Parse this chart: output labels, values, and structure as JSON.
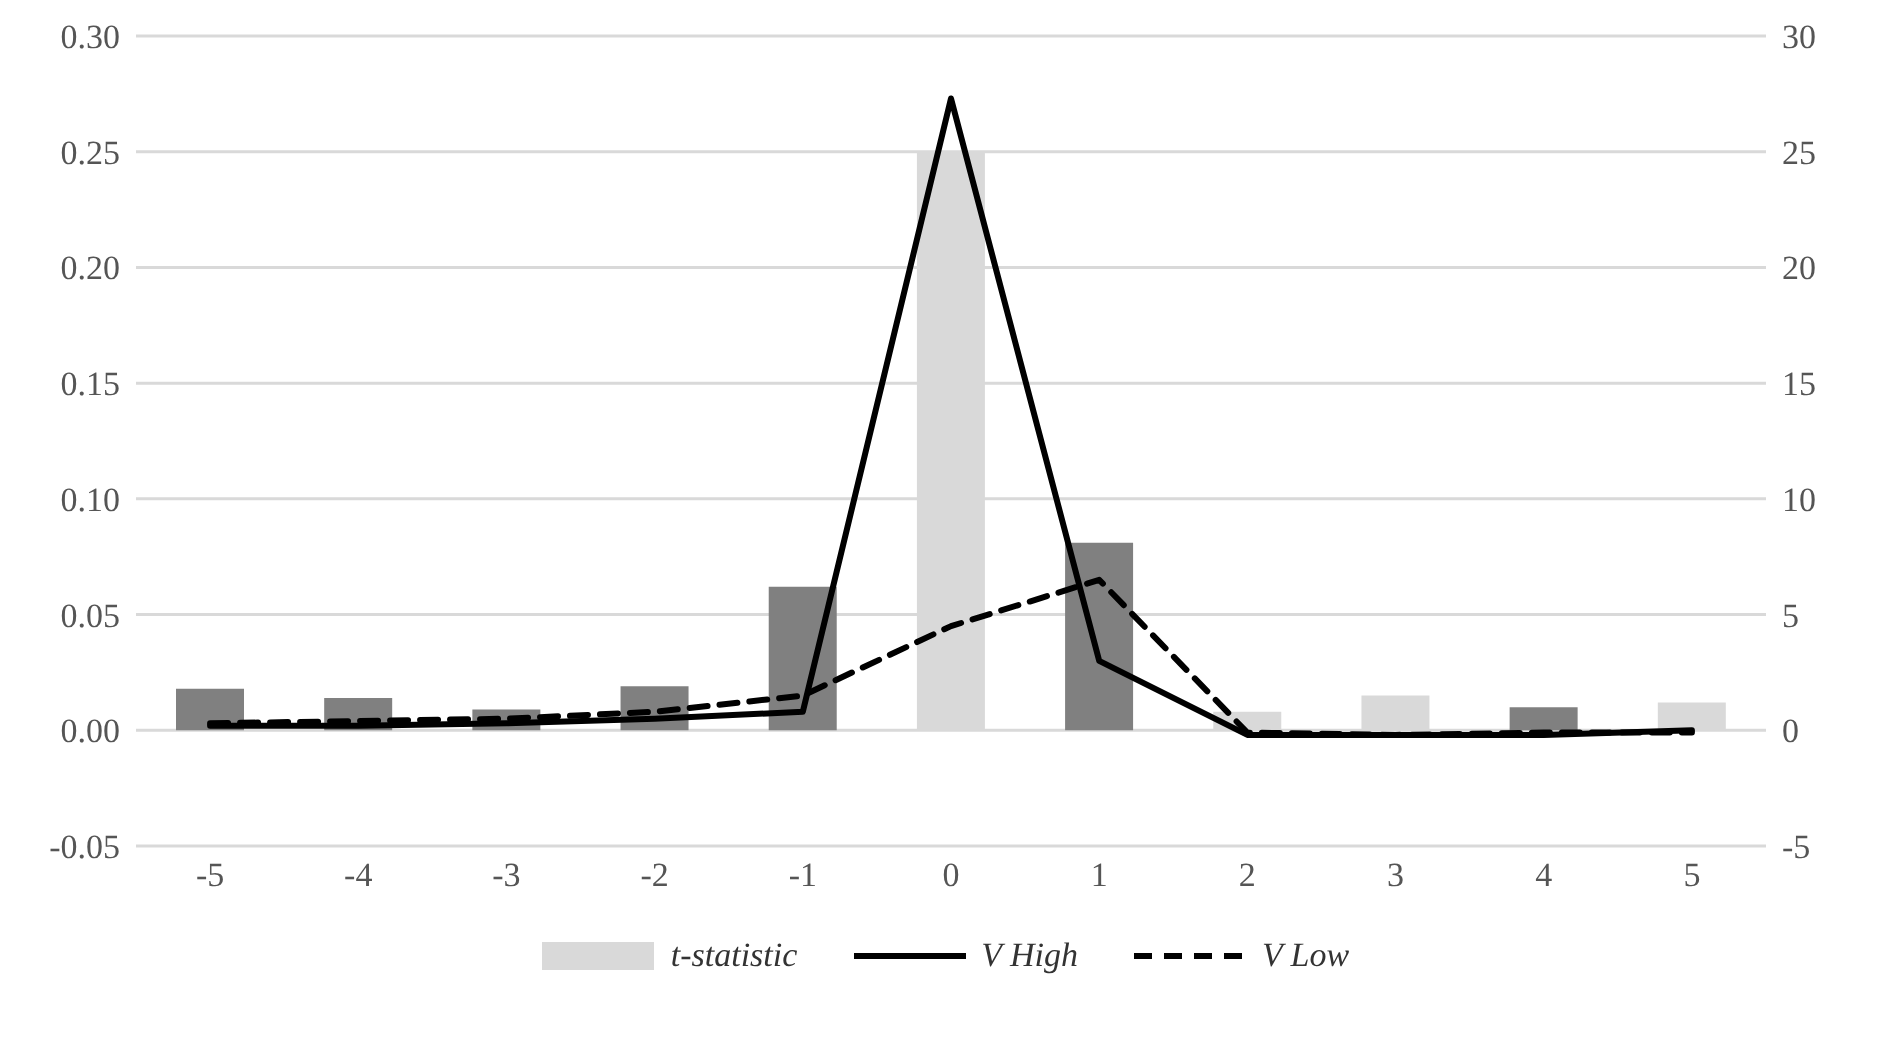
{
  "chart_data": {
    "type": "bar",
    "categories": [
      "-5",
      "-4",
      "-3",
      "-2",
      "-1",
      "0",
      "1",
      "2",
      "3",
      "4",
      "5"
    ],
    "series": [
      {
        "name": "t-statistic",
        "axis": "y2",
        "color": "#d9d9d9",
        "colors": [
          "#808080",
          "#808080",
          "#808080",
          "#808080",
          "#808080",
          "#d9d9d9",
          "#808080",
          "#d9d9d9",
          "#d9d9d9",
          "#808080",
          "#d9d9d9"
        ],
        "values": [
          1.8,
          1.4,
          0.9,
          1.9,
          6.2,
          25.0,
          8.1,
          0.8,
          1.5,
          1.0,
          1.2
        ]
      },
      {
        "name": "V High",
        "type": "line",
        "color": "#000000",
        "line_style": "solid",
        "values": [
          0.002,
          0.002,
          0.003,
          0.005,
          0.008,
          0.273,
          0.03,
          -0.002,
          -0.002,
          -0.002,
          0.0
        ]
      },
      {
        "name": "V Low",
        "type": "line",
        "color": "#000000",
        "line_style": "dashed",
        "values": [
          0.003,
          0.004,
          0.005,
          0.008,
          0.015,
          0.045,
          0.065,
          -0.001,
          -0.002,
          -0.001,
          -0.001
        ]
      }
    ],
    "ylim": [
      -0.05,
      0.3
    ],
    "yticks": [
      {
        "value": -0.05,
        "label": "-0.05"
      },
      {
        "value": 0,
        "label": "0.00"
      },
      {
        "value": 0.05,
        "label": "0.05"
      },
      {
        "value": 0.1,
        "label": "0.10"
      },
      {
        "value": 0.15,
        "label": "0.15"
      },
      {
        "value": 0.2,
        "label": "0.20"
      },
      {
        "value": 0.25,
        "label": "0.25"
      },
      {
        "value": 0.3,
        "label": "0.30"
      }
    ],
    "y2lim": [
      -5,
      30
    ],
    "y2ticks": [
      -5,
      0,
      5,
      10,
      15,
      20,
      25,
      30
    ],
    "grid": "y",
    "legend": "bottom",
    "marker": "none"
  }
}
